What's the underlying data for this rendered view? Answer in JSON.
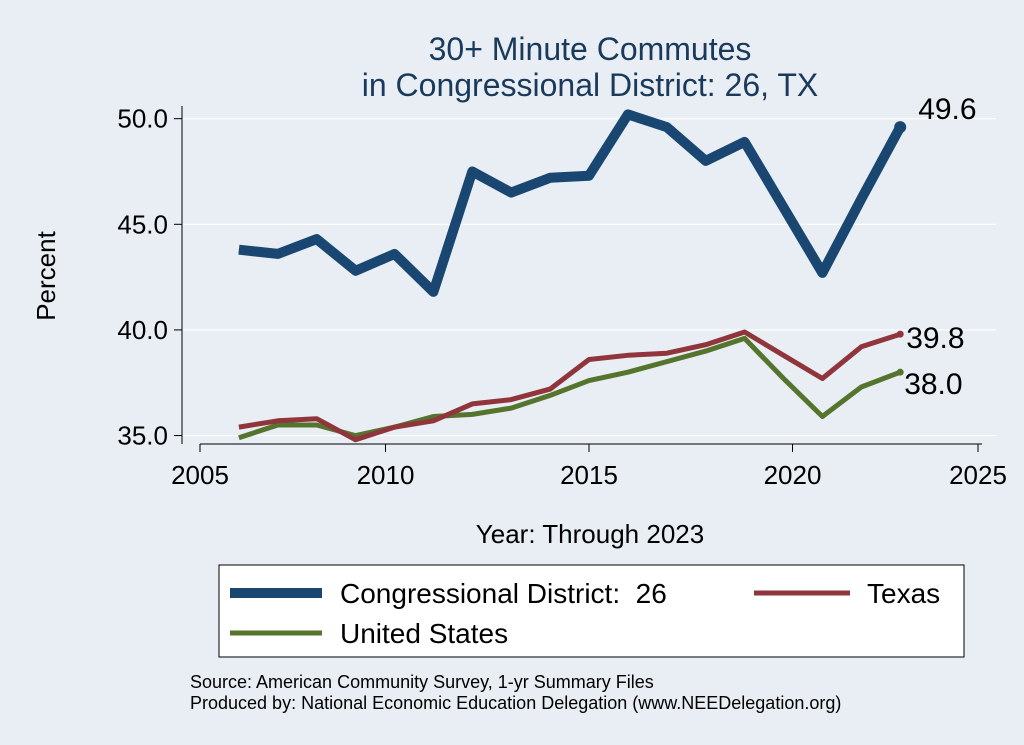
{
  "chart_data": {
    "type": "line",
    "title_lines": [
      "30+ Minute Commutes",
      "in Congressional District:  26, TX"
    ],
    "xlabel": "Year: Through 2023",
    "ylabel": "Percent",
    "xlim": [
      2005,
      2025
    ],
    "ylim": [
      34.6,
      50.6
    ],
    "xticks": [
      2005,
      2010,
      2015,
      2020,
      2025
    ],
    "yticks": [
      35.0,
      40.0,
      45.0,
      50.0
    ],
    "ytick_labels": [
      "35.0",
      "40.0",
      "45.0",
      "50.0"
    ],
    "x": [
      2006,
      2007,
      2008,
      2009,
      2010,
      2011,
      2012,
      2013,
      2014,
      2015,
      2016,
      2017,
      2018,
      2019,
      2020,
      2021,
      2022,
      2023
    ],
    "series": [
      {
        "name": "Congressional District:  26",
        "color": "#1a4771",
        "values": [
          43.8,
          43.6,
          44.3,
          42.8,
          43.6,
          41.8,
          47.5,
          46.5,
          47.2,
          47.3,
          50.2,
          49.6,
          48.0,
          48.9,
          45.8,
          42.7,
          46.2,
          49.6
        ],
        "end_label": "49.6"
      },
      {
        "name": "Texas",
        "color": "#90353b",
        "values": [
          35.4,
          35.7,
          35.8,
          34.8,
          35.4,
          35.7,
          36.5,
          36.7,
          37.2,
          38.6,
          38.8,
          38.9,
          39.3,
          39.9,
          38.8,
          37.7,
          39.2,
          39.8
        ],
        "end_label": "39.8"
      },
      {
        "name": "United States",
        "color": "#55752f",
        "values": [
          34.9,
          35.5,
          35.5,
          35.0,
          35.4,
          35.9,
          36.0,
          36.3,
          36.9,
          37.6,
          38.0,
          38.5,
          39.0,
          39.6,
          37.7,
          35.9,
          37.3,
          38.0
        ],
        "end_label": "38.0"
      }
    ],
    "legend_position": "bottom",
    "grid": true
  },
  "footer": {
    "source": "Source: American Community Survey, 1-yr Summary Files",
    "produced_by": "Produced by: National Economic Education Delegation (www.NEEDelegation.org)"
  }
}
